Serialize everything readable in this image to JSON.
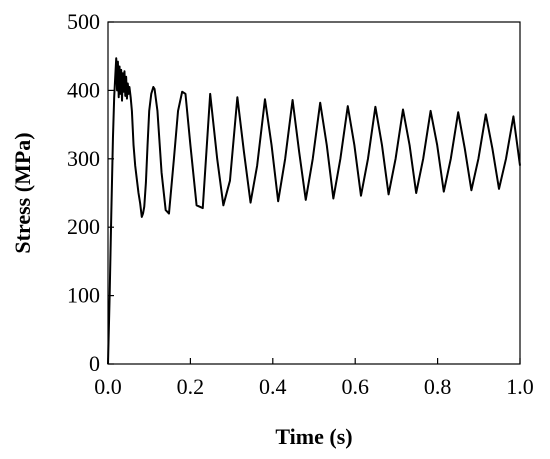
{
  "chart_data": {
    "type": "line",
    "title": "",
    "xlabel": "Time (s)",
    "ylabel": "Stress (MPa)",
    "xlim": [
      0.0,
      1.0
    ],
    "ylim": [
      0,
      500
    ],
    "xticks": [
      "0.0",
      "0.2",
      "0.4",
      "0.6",
      "0.8",
      "1.0"
    ],
    "yticks": [
      "0",
      "100",
      "200",
      "300",
      "400",
      "500"
    ],
    "grid": false,
    "legend": "none",
    "series": [
      {
        "color": "#000000",
        "x": [
          0.0,
          0.004,
          0.008,
          0.012,
          0.015,
          0.018,
          0.02,
          0.022,
          0.024,
          0.026,
          0.028,
          0.03,
          0.032,
          0.034,
          0.036,
          0.038,
          0.04,
          0.042,
          0.044,
          0.046,
          0.048,
          0.05,
          0.052,
          0.055,
          0.058,
          0.062,
          0.066,
          0.07,
          0.074,
          0.078,
          0.082,
          0.085,
          0.088,
          0.092,
          0.096,
          0.1,
          0.105,
          0.11,
          0.113,
          0.12,
          0.13,
          0.14,
          0.148,
          0.16,
          0.17,
          0.18,
          0.188,
          0.2,
          0.215,
          0.23,
          0.248,
          0.265,
          0.28,
          0.296,
          0.314,
          0.33,
          0.346,
          0.362,
          0.381,
          0.397,
          0.413,
          0.43,
          0.448,
          0.464,
          0.48,
          0.497,
          0.515,
          0.531,
          0.547,
          0.564,
          0.582,
          0.598,
          0.614,
          0.631,
          0.649,
          0.665,
          0.681,
          0.698,
          0.716,
          0.732,
          0.748,
          0.765,
          0.783,
          0.799,
          0.815,
          0.832,
          0.85,
          0.866,
          0.882,
          0.899,
          0.917,
          0.933,
          0.949,
          0.966,
          0.984,
          1.0
        ],
        "y": [
          0,
          100,
          220,
          330,
          390,
          425,
          447,
          400,
          442,
          390,
          435,
          395,
          430,
          385,
          425,
          398,
          428,
          392,
          420,
          388,
          410,
          395,
          405,
          390,
          370,
          320,
          290,
          270,
          250,
          235,
          215,
          220,
          230,
          265,
          320,
          370,
          395,
          405,
          402,
          370,
          280,
          225,
          220,
          300,
          370,
          398,
          395,
          320,
          232,
          228,
          395,
          300,
          232,
          268,
          390,
          310,
          236,
          290,
          387,
          320,
          238,
          300,
          386,
          310,
          240,
          300,
          382,
          320,
          242,
          300,
          377,
          320,
          246,
          300,
          376,
          320,
          248,
          300,
          372,
          320,
          250,
          300,
          370,
          320,
          252,
          300,
          368,
          315,
          254,
          300,
          365,
          315,
          256,
          300,
          362,
          290
        ]
      }
    ]
  }
}
